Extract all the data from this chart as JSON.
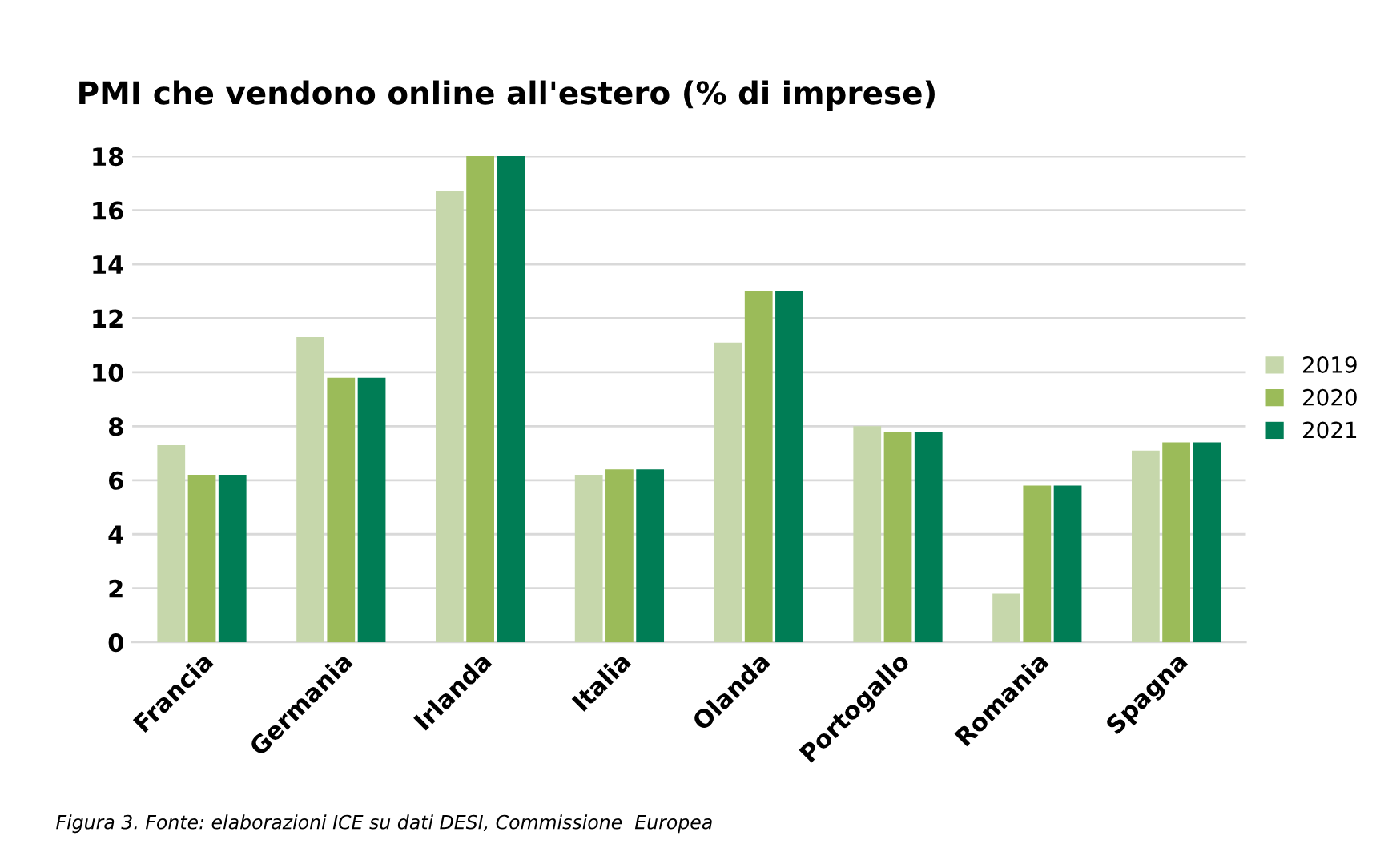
{
  "chart_data": {
    "type": "bar",
    "title": "PMI che vendono online all'estero (% di imprese)",
    "categories": [
      "Francia",
      "Germania",
      "Irlanda",
      "Italia",
      "Olanda",
      "Portogallo",
      "Romania",
      "Spagna"
    ],
    "series": [
      {
        "name": "2019",
        "color": "#c6d7ab",
        "values": [
          7.3,
          11.3,
          16.7,
          6.2,
          11.1,
          8.0,
          1.8,
          7.1
        ]
      },
      {
        "name": "2020",
        "color": "#9bbb59",
        "values": [
          6.2,
          9.8,
          18,
          6.4,
          13.0,
          7.8,
          5.8,
          7.4
        ]
      },
      {
        "name": "2021",
        "color": "#007d55",
        "values": [
          6.2,
          9.8,
          18,
          6.4,
          13.0,
          7.8,
          5.8,
          7.4
        ]
      }
    ],
    "ylim": [
      0,
      18
    ],
    "yticks": [
      0,
      2,
      4,
      6,
      8,
      10,
      12,
      14,
      16,
      18
    ],
    "grid": "y",
    "legend": "right",
    "annotations": [
      "Figura 3. Fonte: elaborazioni ICE su dati DESI, Commissione  Europea"
    ]
  }
}
